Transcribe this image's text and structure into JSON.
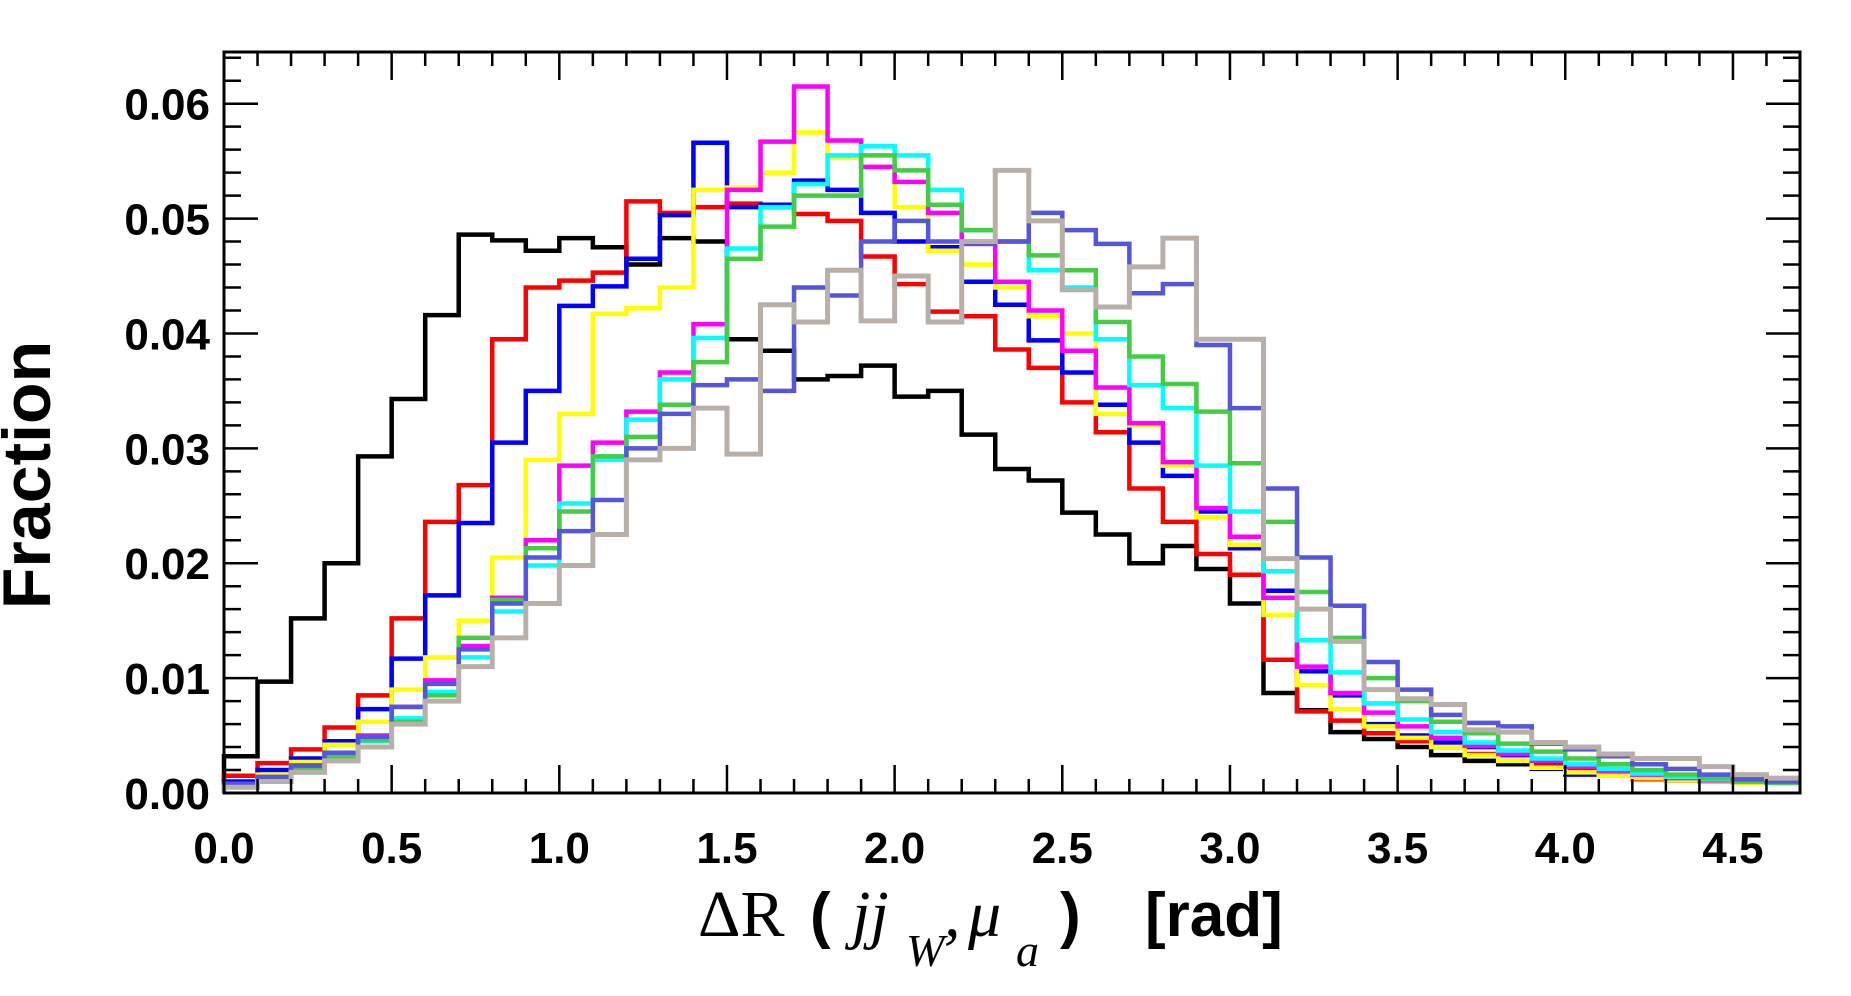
{
  "chart_data": {
    "type": "histogram",
    "title": "",
    "ylabel": "Fraction",
    "xlabel": {
      "delta": "ΔR",
      "open": "(",
      "var1": "jj",
      "sub1": "W",
      "comma": ",",
      "var2": "μ",
      "sub2": "a",
      "close": ")",
      "unit": "[rad]"
    },
    "xlim": [
      0.0,
      4.7
    ],
    "ylim": [
      0.0,
      0.0645
    ],
    "bin_width": 0.1,
    "x_ticks": [
      "0.0",
      "0.5",
      "1.0",
      "1.5",
      "2.0",
      "2.5",
      "3.0",
      "3.5",
      "4.0",
      "4.5"
    ],
    "x_tick_values": [
      0.0,
      0.5,
      1.0,
      1.5,
      2.0,
      2.5,
      3.0,
      3.5,
      4.0,
      4.5
    ],
    "y_ticks": [
      "0.00",
      "0.01",
      "0.02",
      "0.03",
      "0.04",
      "0.05",
      "0.06"
    ],
    "y_tick_values": [
      0.0,
      0.01,
      0.02,
      0.03,
      0.04,
      0.05,
      0.06
    ],
    "series": [
      {
        "name": "black",
        "color": "#000000",
        "values": [
          0.0032,
          0.0097,
          0.0152,
          0.02,
          0.0293,
          0.0343,
          0.0416,
          0.0486,
          0.0481,
          0.0472,
          0.0483,
          0.0475,
          0.046,
          0.0483,
          0.048,
          0.0395,
          0.0385,
          0.036,
          0.0363,
          0.0372,
          0.0345,
          0.035,
          0.0312,
          0.0282,
          0.0272,
          0.0244,
          0.0225,
          0.02,
          0.0215,
          0.0195,
          0.0165,
          0.0087,
          0.0072,
          0.0053,
          0.0047,
          0.004,
          0.0033,
          0.0028,
          0.0025,
          0.0021,
          0.0018,
          0.0015,
          0.0013,
          0.0011,
          0.001,
          0.001,
          0.001
        ]
      },
      {
        "name": "red",
        "color": "#ff0000",
        "values": [
          0.0015,
          0.0026,
          0.0038,
          0.0057,
          0.0085,
          0.0152,
          0.0236,
          0.0268,
          0.0395,
          0.044,
          0.0446,
          0.0453,
          0.0515,
          0.0505,
          0.051,
          0.0513,
          0.051,
          0.0504,
          0.0498,
          0.0467,
          0.0443,
          0.0419,
          0.0415,
          0.0386,
          0.037,
          0.034,
          0.0314,
          0.0265,
          0.0236,
          0.0208,
          0.019,
          0.0116,
          0.0071,
          0.0063,
          0.0052,
          0.0045,
          0.004,
          0.0034,
          0.0028,
          0.0024,
          0.0021,
          0.0018,
          0.0012,
          0.0011,
          0.001,
          0.0009,
          0.0008
        ]
      },
      {
        "name": "blue",
        "color": "#0000ff",
        "values": [
          0.001,
          0.002,
          0.003,
          0.0045,
          0.0073,
          0.0117,
          0.0172,
          0.0235,
          0.0305,
          0.035,
          0.0424,
          0.0441,
          0.0465,
          0.0503,
          0.0566,
          0.051,
          0.0512,
          0.0533,
          0.0525,
          0.0505,
          0.048,
          0.0475,
          0.0445,
          0.0425,
          0.0394,
          0.0366,
          0.0338,
          0.0305,
          0.0276,
          0.0245,
          0.0213,
          0.0176,
          0.0106,
          0.0085,
          0.006,
          0.005,
          0.0044,
          0.004,
          0.0033,
          0.0027,
          0.0016,
          0.002,
          0.0017,
          0.0015,
          0.0012,
          0.001,
          0.0009
        ]
      },
      {
        "name": "yellow",
        "color": "#ffff00",
        "values": [
          0.0008,
          0.0016,
          0.0027,
          0.0042,
          0.0062,
          0.009,
          0.0118,
          0.015,
          0.0205,
          0.029,
          0.033,
          0.0417,
          0.0422,
          0.044,
          0.0525,
          0.0527,
          0.054,
          0.0575,
          0.0553,
          0.0545,
          0.051,
          0.0472,
          0.046,
          0.044,
          0.0415,
          0.04,
          0.033,
          0.032,
          0.0285,
          0.024,
          0.0216,
          0.0155,
          0.0094,
          0.0073,
          0.0058,
          0.0048,
          0.004,
          0.0033,
          0.0028,
          0.0022,
          0.0018,
          0.0015,
          0.0013,
          0.0011,
          0.001,
          0.0009,
          0.0008
        ]
      },
      {
        "name": "magenta",
        "color": "#ff00ff",
        "values": [
          0.0006,
          0.0012,
          0.0022,
          0.0035,
          0.005,
          0.0075,
          0.0098,
          0.0128,
          0.017,
          0.022,
          0.0285,
          0.0305,
          0.0332,
          0.0366,
          0.0408,
          0.0525,
          0.0567,
          0.0615,
          0.0568,
          0.0545,
          0.0532,
          0.0505,
          0.0478,
          0.0445,
          0.042,
          0.0385,
          0.0353,
          0.0322,
          0.0288,
          0.0248,
          0.0223,
          0.017,
          0.011,
          0.0087,
          0.007,
          0.0058,
          0.0048,
          0.0041,
          0.0034,
          0.0028,
          0.0023,
          0.0019,
          0.0016,
          0.0013,
          0.0011,
          0.001,
          0.0009
        ]
      },
      {
        "name": "cyan",
        "color": "#00ffff",
        "values": [
          0.0005,
          0.001,
          0.0018,
          0.003,
          0.0045,
          0.0065,
          0.0088,
          0.0118,
          0.0158,
          0.0198,
          0.0252,
          0.029,
          0.0325,
          0.036,
          0.0396,
          0.0474,
          0.051,
          0.053,
          0.0555,
          0.0563,
          0.0555,
          0.0525,
          0.049,
          0.048,
          0.0455,
          0.044,
          0.0395,
          0.0355,
          0.0335,
          0.0285,
          0.0245,
          0.0193,
          0.0133,
          0.0105,
          0.0078,
          0.0064,
          0.0053,
          0.0044,
          0.0037,
          0.003,
          0.0025,
          0.0021,
          0.0017,
          0.0014,
          0.0012,
          0.001,
          0.0009
        ]
      },
      {
        "name": "green",
        "color": "#44cc44",
        "values": [
          0.0006,
          0.0011,
          0.002,
          0.0032,
          0.0046,
          0.0062,
          0.0085,
          0.0135,
          0.0168,
          0.0213,
          0.0245,
          0.0293,
          0.031,
          0.0338,
          0.0375,
          0.0465,
          0.0493,
          0.052,
          0.052,
          0.0555,
          0.0542,
          0.0512,
          0.049,
          0.048,
          0.0468,
          0.0455,
          0.041,
          0.038,
          0.0356,
          0.0332,
          0.0287,
          0.0236,
          0.0175,
          0.0135,
          0.01,
          0.008,
          0.0062,
          0.0052,
          0.0043,
          0.0036,
          0.003,
          0.0025,
          0.002,
          0.0016,
          0.0013,
          0.001,
          0.0009
        ]
      },
      {
        "name": "slateblue",
        "color": "#5555dd",
        "values": [
          0.0008,
          0.0014,
          0.0024,
          0.0035,
          0.0049,
          0.0075,
          0.0095,
          0.0125,
          0.0165,
          0.0205,
          0.0228,
          0.0255,
          0.03,
          0.033,
          0.0355,
          0.036,
          0.035,
          0.044,
          0.0433,
          0.048,
          0.0498,
          0.048,
          0.0478,
          0.048,
          0.0505,
          0.049,
          0.0478,
          0.0435,
          0.0443,
          0.039,
          0.0335,
          0.0265,
          0.0205,
          0.0163,
          0.0114,
          0.009,
          0.0068,
          0.0061,
          0.0058,
          0.0043,
          0.0038,
          0.0032,
          0.0025,
          0.0021,
          0.0016,
          0.0012,
          0.001
        ]
      },
      {
        "name": "grey",
        "color": "#b8b0a8",
        "values": [
          0.0005,
          0.001,
          0.0018,
          0.0028,
          0.004,
          0.006,
          0.008,
          0.011,
          0.0135,
          0.0165,
          0.0198,
          0.0225,
          0.029,
          0.03,
          0.0335,
          0.0295,
          0.0425,
          0.041,
          0.0455,
          0.0411,
          0.045,
          0.041,
          0.048,
          0.0542,
          0.0498,
          0.0438,
          0.0423,
          0.0458,
          0.0483,
          0.0395,
          0.0395,
          0.0204,
          0.016,
          0.0132,
          0.009,
          0.0082,
          0.0077,
          0.0055,
          0.0053,
          0.0044,
          0.004,
          0.0034,
          0.003,
          0.003,
          0.0023,
          0.0016,
          0.0013
        ]
      }
    ]
  }
}
